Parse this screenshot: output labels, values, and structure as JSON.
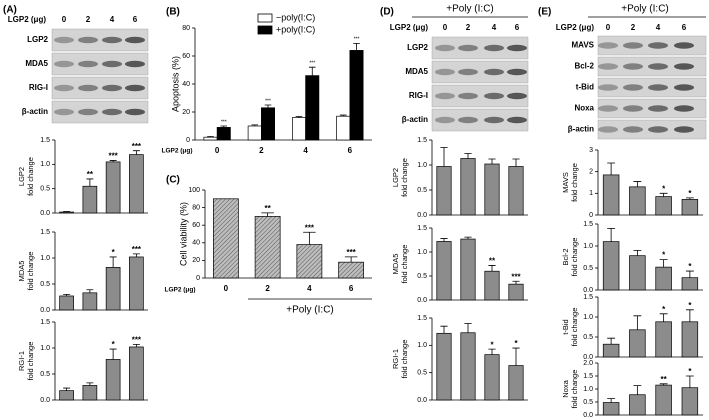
{
  "figure": {
    "panels": [
      {
        "label": "(A)",
        "blot": {
          "header": "LGP2 (μg)",
          "lanes": [
            "0",
            "2",
            "4",
            "6"
          ],
          "rows": [
            "LGP2",
            "MDA5",
            "RIG-I",
            "β-actin"
          ]
        }
      },
      {
        "label": "(B)"
      },
      {
        "label": "(C)"
      },
      {
        "label": "(D)",
        "treatment": "+Poly (I:C)",
        "blot": {
          "header": "LGP2 (μg)",
          "lanes": [
            "0",
            "2",
            "4",
            "6"
          ],
          "rows": [
            "LGP2",
            "MDA5",
            "RIG-I",
            "β-actin"
          ]
        }
      },
      {
        "label": "(E)",
        "treatment": "+Poly (I:C)",
        "blot": {
          "header": "LGP2 (μg)",
          "lanes": [
            "0",
            "2",
            "4",
            "6"
          ],
          "rows": [
            "MAVS",
            "Bcl-2",
            "t-Bid",
            "Noxa",
            "β-actin"
          ]
        }
      }
    ]
  },
  "chart_data": [
    {
      "type": "bar",
      "ylabel": [
        "LGP2",
        "fold change"
      ],
      "values": [
        0.02,
        0.55,
        1.05,
        1.2
      ],
      "errors": [
        0.01,
        0.15,
        0.03,
        0.08
      ],
      "annotations": [
        null,
        "**",
        "***",
        "***"
      ],
      "color": "#8c8c8c",
      "ylim": [
        0,
        1.5
      ],
      "yticks": [
        {
          "value": 0,
          "label": "0.0"
        },
        {
          "value": 0.5,
          "label": "0.5"
        },
        {
          "value": 1,
          "label": "1.0"
        },
        {
          "value": 1.5,
          "label": "1.5"
        }
      ]
    },
    {
      "type": "bar",
      "ylabel": [
        "MDA5",
        "fold change"
      ],
      "values": [
        0.27,
        0.33,
        0.82,
        1.02
      ],
      "errors": [
        0.03,
        0.06,
        0.2,
        0.06
      ],
      "annotations": [
        null,
        null,
        "*",
        "***"
      ],
      "color": "#8c8c8c",
      "ylim": [
        0,
        1.5
      ],
      "yticks": [
        {
          "value": 0,
          "label": "0.0"
        },
        {
          "value": 0.5,
          "label": "0.5"
        },
        {
          "value": 1,
          "label": "1.0"
        },
        {
          "value": 1.5,
          "label": "1.5"
        }
      ]
    },
    {
      "type": "bar",
      "ylabel": [
        "RGI-1",
        "fold change"
      ],
      "values": [
        0.18,
        0.28,
        0.78,
        1.02
      ],
      "errors": [
        0.05,
        0.05,
        0.2,
        0.05
      ],
      "annotations": [
        null,
        null,
        "*",
        "***"
      ],
      "color": "#8c8c8c",
      "ylim": [
        0,
        1.5
      ],
      "yticks": [
        {
          "value": 0,
          "label": "0.0"
        },
        {
          "value": 0.5,
          "label": "0.5"
        },
        {
          "value": 1,
          "label": "1.0"
        },
        {
          "value": 1.5,
          "label": "1.5"
        }
      ]
    },
    {
      "type": "bar",
      "ylabel": "Apoptosis (%)",
      "xlabel": "LGP2 (μg)",
      "categories": [
        "0",
        "2",
        "4",
        "6"
      ],
      "series": [
        {
          "name": "−poly(I:C)",
          "color": "#ffffff",
          "values": [
            2,
            10,
            16,
            17
          ],
          "errors": [
            0.5,
            0.8,
            0.8,
            0.8
          ],
          "annotations": [
            null,
            null,
            null,
            null
          ]
        },
        {
          "name": "+poly(I:C)",
          "color": "#000000",
          "values": [
            9,
            23,
            46,
            64
          ],
          "errors": [
            1,
            2,
            6,
            5
          ],
          "annotations": [
            "***",
            "***",
            "***",
            "***"
          ]
        }
      ],
      "ylim": [
        0,
        80
      ],
      "yticks": [
        0,
        20,
        40,
        60,
        80
      ]
    },
    {
      "type": "bar",
      "ylabel": "Cell viability (%)",
      "xlabel": "LGP2 (μg)",
      "categories": [
        "0",
        "2",
        "4",
        "6"
      ],
      "group_label": "+Poly (I:C)",
      "values": [
        90,
        70,
        38,
        18
      ],
      "errors": [
        null,
        4,
        14,
        6
      ],
      "annotations": [
        null,
        "**",
        "***",
        "***"
      ],
      "color": "#a0a0a0",
      "pattern": "hatch",
      "ylim": [
        0,
        100
      ],
      "yticks": [
        0,
        20,
        40,
        60,
        80,
        100
      ]
    },
    {
      "type": "bar",
      "ylabel": [
        "LGP2",
        "fold change"
      ],
      "values": [
        0.97,
        1.13,
        1.02,
        0.97
      ],
      "errors": [
        0.38,
        0.1,
        0.1,
        0.15
      ],
      "annotations": [
        null,
        null,
        null,
        null
      ],
      "color": "#8c8c8c",
      "ylim": [
        0,
        1.5
      ],
      "yticks": [
        {
          "value": 0,
          "label": "0.0"
        },
        {
          "value": 0.5,
          "label": "0.5"
        },
        {
          "value": 1,
          "label": "1.0"
        },
        {
          "value": 1.5,
          "label": "1.5"
        }
      ]
    },
    {
      "type": "bar",
      "ylabel": [
        "MDA5",
        "fold change"
      ],
      "values": [
        1.22,
        1.27,
        0.6,
        0.33
      ],
      "errors": [
        0.06,
        0.04,
        0.12,
        0.06
      ],
      "annotations": [
        null,
        null,
        "**",
        "***"
      ],
      "color": "#8c8c8c",
      "ylim": [
        0,
        1.5
      ],
      "yticks": [
        {
          "value": 0,
          "label": "0.0"
        },
        {
          "value": 0.5,
          "label": "0.5"
        },
        {
          "value": 1,
          "label": "1.0"
        },
        {
          "value": 1.5,
          "label": "1.5"
        }
      ]
    },
    {
      "type": "bar",
      "ylabel": [
        "RGI-1",
        "fold change"
      ],
      "values": [
        1.22,
        1.23,
        0.83,
        0.63
      ],
      "errors": [
        0.13,
        0.17,
        0.1,
        0.32
      ],
      "annotations": [
        null,
        null,
        "*",
        "*"
      ],
      "color": "#8c8c8c",
      "ylim": [
        0,
        1.5
      ],
      "yticks": [
        {
          "value": 0,
          "label": "0.0"
        },
        {
          "value": 0.5,
          "label": "0.5"
        },
        {
          "value": 1,
          "label": "1.0"
        },
        {
          "value": 1.5,
          "label": "1.5"
        }
      ]
    },
    {
      "type": "bar",
      "ylabel": [
        "MAVS",
        "fold change"
      ],
      "values": [
        1.85,
        1.3,
        0.85,
        0.72
      ],
      "errors": [
        0.55,
        0.25,
        0.15,
        0.07
      ],
      "annotations": [
        null,
        null,
        "*",
        "*"
      ],
      "color": "#8c8c8c",
      "ylim": [
        0,
        3
      ],
      "yticks": [
        0,
        1,
        2,
        3
      ]
    },
    {
      "type": "bar",
      "ylabel": [
        "Bcl-2",
        "fold change"
      ],
      "values": [
        1.1,
        0.78,
        0.52,
        0.28
      ],
      "errors": [
        0.3,
        0.12,
        0.17,
        0.15
      ],
      "annotations": [
        null,
        null,
        "*",
        "*"
      ],
      "color": "#8c8c8c",
      "ylim": [
        0,
        1.5
      ],
      "yticks": [
        {
          "value": 0,
          "label": "0.0"
        },
        {
          "value": 0.5,
          "label": "0.5"
        },
        {
          "value": 1,
          "label": "1.0"
        },
        {
          "value": 1.5,
          "label": "1.5"
        }
      ]
    },
    {
      "type": "bar",
      "ylabel": [
        "t-Bid",
        "fold change"
      ],
      "values": [
        0.32,
        0.68,
        0.88,
        0.88
      ],
      "errors": [
        0.15,
        0.35,
        0.2,
        0.3
      ],
      "annotations": [
        null,
        null,
        "*",
        "*"
      ],
      "color": "#8c8c8c",
      "ylim": [
        0,
        1.5
      ],
      "yticks": [
        {
          "value": 0,
          "label": "0.0"
        },
        {
          "value": 0.5,
          "label": "0.5"
        },
        {
          "value": 1,
          "label": "1.0"
        },
        {
          "value": 1.5,
          "label": "1.5"
        }
      ]
    },
    {
      "type": "bar",
      "ylabel": [
        "Noxa",
        "fold change"
      ],
      "values": [
        0.48,
        0.78,
        1.15,
        1.05
      ],
      "errors": [
        0.15,
        0.35,
        0.05,
        0.45
      ],
      "annotations": [
        null,
        null,
        "**",
        "*"
      ],
      "color": "#8c8c8c",
      "ylim": [
        0,
        2
      ],
      "yticks": [
        {
          "value": 0,
          "label": "0.0"
        },
        {
          "value": 0.5,
          "label": "0.5"
        },
        {
          "value": 1,
          "label": "1.0"
        },
        {
          "value": 1.5,
          "label": "1.5"
        },
        {
          "value": 2,
          "label": "2.0"
        }
      ]
    }
  ]
}
